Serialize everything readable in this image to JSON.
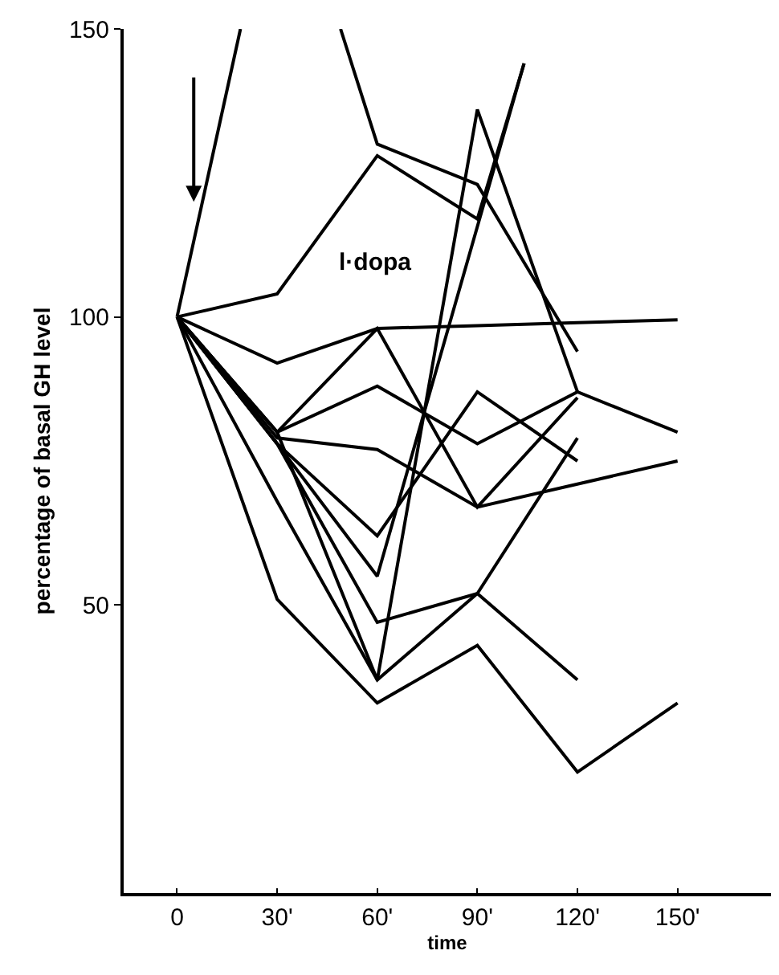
{
  "chart_data": {
    "type": "line",
    "ylabel": "percentage of basal GH level",
    "xlabel": "time",
    "annotations": [
      "l·dopa"
    ],
    "xlim": [
      -16,
      178
    ],
    "xticks": [
      {
        "value": 0,
        "label": "0"
      },
      {
        "value": 30,
        "label": "30'"
      },
      {
        "value": 60,
        "label": "60'"
      },
      {
        "value": 90,
        "label": "90'"
      },
      {
        "value": 120,
        "label": "120'"
      },
      {
        "value": 150,
        "label": "150'"
      }
    ],
    "ylim": [
      0,
      150
    ],
    "yticks": [
      50,
      100,
      150
    ],
    "grid": false,
    "marker": "none",
    "line_style": "solid",
    "series": [
      {
        "color": "#000000",
        "x": [
          0,
          19,
          34,
          49,
          60,
          90,
          120
        ],
        "values": [
          100,
          150,
          null,
          150,
          130,
          123,
          94
        ]
      },
      {
        "color": "#000000",
        "x": [
          0,
          30,
          60,
          90,
          104
        ],
        "values": [
          100,
          104,
          128,
          117,
          144
        ]
      },
      {
        "color": "#000000",
        "x": [
          0,
          30,
          60,
          90,
          120,
          150
        ],
        "values": [
          100,
          92,
          98,
          98.5,
          99,
          99.5
        ]
      },
      {
        "color": "#000000",
        "x": [
          0,
          30,
          60,
          90,
          120,
          150
        ],
        "values": [
          100,
          51,
          33,
          43,
          21,
          33
        ]
      },
      {
        "color": "#000000",
        "x": [
          0,
          30,
          60,
          90,
          120
        ],
        "values": [
          100,
          80,
          37,
          136,
          87
        ]
      },
      {
        "color": "#000000",
        "x": [
          0,
          30,
          60,
          90,
          120
        ],
        "values": [
          100,
          68,
          37,
          52,
          79
        ]
      },
      {
        "color": "#000000",
        "x": [
          0,
          30,
          60,
          90,
          120
        ],
        "values": [
          100,
          78,
          47,
          52,
          37
        ]
      },
      {
        "color": "#000000",
        "x": [
          0,
          30,
          60,
          104
        ],
        "values": [
          100,
          78,
          55,
          144
        ]
      },
      {
        "color": "#000000",
        "x": [
          0,
          30,
          60,
          90,
          120
        ],
        "values": [
          100,
          80,
          98,
          67,
          86
        ]
      },
      {
        "color": "#000000",
        "x": [
          0,
          30,
          60,
          90,
          120,
          150
        ],
        "values": [
          100,
          80,
          88,
          78,
          87,
          80
        ]
      },
      {
        "color": "#000000",
        "x": [
          0,
          30,
          60,
          90,
          150
        ],
        "values": [
          100,
          79,
          77,
          67,
          75
        ]
      },
      {
        "color": "#000000",
        "x": [
          0,
          30,
          60,
          90,
          120
        ],
        "values": [
          100,
          78,
          62,
          87,
          75
        ]
      }
    ]
  }
}
